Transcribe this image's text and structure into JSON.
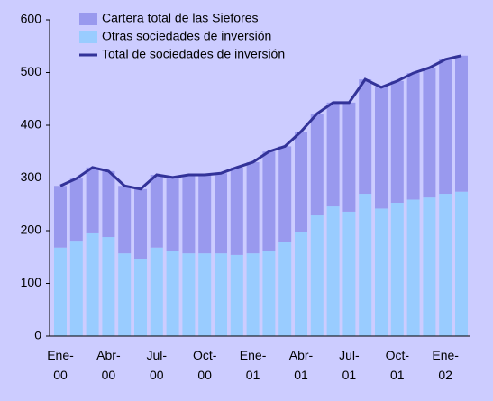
{
  "chart_data": {
    "type": "bar",
    "stacked": true,
    "categories": [
      "Ene-00",
      null,
      null,
      "Abr-00",
      null,
      null,
      "Jul-00",
      null,
      null,
      "Oct-00",
      null,
      null,
      "Ene-01",
      null,
      null,
      "Abr-01",
      null,
      null,
      "Jul-01",
      null,
      null,
      "Oct-01",
      null,
      null,
      "Ene-02",
      null
    ],
    "series": [
      {
        "name": "Otras sociedades de inversión",
        "color": "#99ccff",
        "values": [
          168,
          181,
          195,
          188,
          157,
          147,
          168,
          161,
          157,
          157,
          157,
          154,
          157,
          161,
          178,
          198,
          229,
          246,
          236,
          270,
          242,
          253,
          259,
          263,
          270,
          274
        ]
      },
      {
        "name": "Cartera total de las Siefores",
        "color": "#9999ee",
        "values": [
          117,
          118,
          125,
          125,
          128,
          132,
          138,
          140,
          149,
          149,
          152,
          166,
          173,
          189,
          182,
          190,
          193,
          197,
          207,
          217,
          230,
          231,
          240,
          246,
          255,
          258
        ]
      },
      {
        "name": "Total de sociedades de inversión",
        "type": "line",
        "color": "#333399",
        "values": [
          285,
          299,
          320,
          313,
          285,
          279,
          306,
          301,
          306,
          306,
          309,
          320,
          330,
          350,
          360,
          388,
          422,
          443,
          443,
          487,
          472,
          484,
          499,
          509,
          525,
          532
        ]
      }
    ],
    "legend_order": [
      1,
      0,
      2
    ],
    "ylim": [
      0,
      600
    ],
    "yticks": [
      0,
      100,
      200,
      300,
      400,
      500,
      600
    ],
    "grid": false
  }
}
